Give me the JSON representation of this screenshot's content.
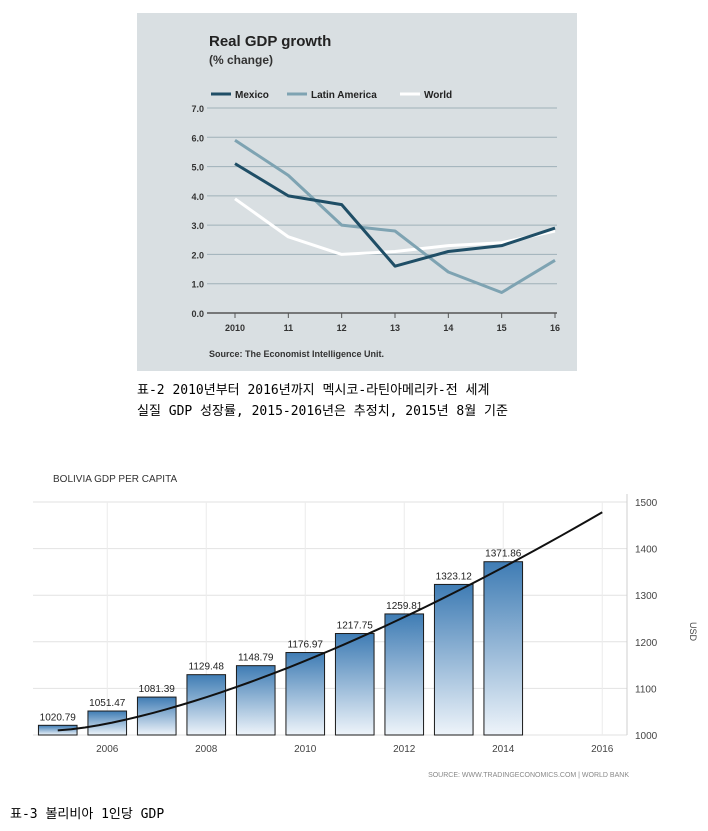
{
  "figure1": {
    "chart_data": {
      "type": "line",
      "title": "Real GDP growth",
      "subtitle": "(% change)",
      "categories": [
        "2010",
        "11",
        "12",
        "13",
        "14",
        "15",
        "16"
      ],
      "ylim": [
        0,
        7
      ],
      "yticks": [
        "0.0",
        "1.0",
        "2.0",
        "3.0",
        "4.0",
        "5.0",
        "6.0",
        "7.0"
      ],
      "grid": true,
      "legend_position": "top",
      "series": [
        {
          "name": "Mexico",
          "color": "#1f4e66",
          "values": [
            5.1,
            4.0,
            3.7,
            1.6,
            2.1,
            2.3,
            2.9
          ]
        },
        {
          "name": "Latin America",
          "color": "#7ea3b2",
          "values": [
            5.9,
            4.7,
            3.0,
            2.8,
            1.4,
            0.7,
            1.8
          ]
        },
        {
          "name": "World",
          "color": "#ffffff",
          "values": [
            3.9,
            2.6,
            2.0,
            2.1,
            2.3,
            2.4,
            2.8
          ]
        }
      ],
      "source": "Source: The Economist Intelligence Unit.",
      "background": "#d9dfe2"
    },
    "caption_line1": "표-2 2010년부터 2016년까지 멕시코-라틴아메리카-전 세계",
    "caption_line2": "실질 GDP 성장률, 2015-2016년은 추정치, 2015년 8월 기준"
  },
  "figure2": {
    "chart_data": {
      "type": "bar",
      "title": "BOLIVIA GDP PER CAPITA",
      "x": [
        2005,
        2006,
        2007,
        2008,
        2009,
        2010,
        2011,
        2012,
        2013,
        2014
      ],
      "values": [
        1020.79,
        1051.47,
        1081.39,
        1129.48,
        1148.79,
        1176.97,
        1217.75,
        1259.81,
        1323.12,
        1371.86
      ],
      "value_labels": [
        "1020.79",
        "1051.47",
        "1081.39",
        "1129.48",
        "1148.79",
        "1176.97",
        "1217.75",
        "1259.81",
        "1323.12",
        "1371.86"
      ],
      "xticks": [
        "2006",
        "2008",
        "2010",
        "2012",
        "2014",
        "2016"
      ],
      "yticks": [
        "1000",
        "1100",
        "1200",
        "1300",
        "1400",
        "1500"
      ],
      "ylim": [
        1000,
        1500
      ],
      "ylabel": "USD",
      "trend_line": {
        "x": [
          2005,
          2016
        ],
        "y": [
          1010,
          1478
        ]
      },
      "bar_color": "#3f7cb4",
      "source": "SOURCE: WWW.TRADINGECONOMICS.COM | WORLD BANK"
    },
    "caption": "표-3 볼리비아 1인당 GDP"
  }
}
